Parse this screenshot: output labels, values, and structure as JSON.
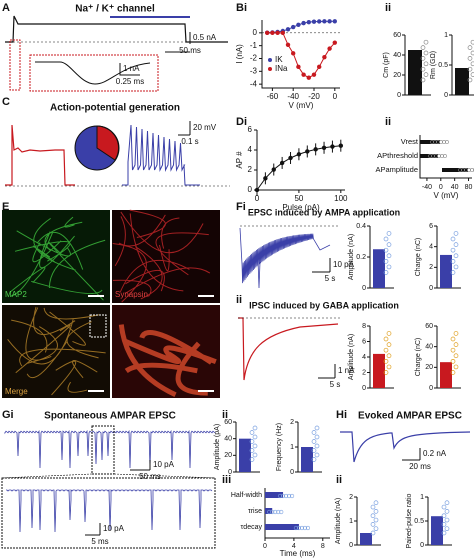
{
  "panels": {
    "A": {
      "label": "A",
      "title": "Na⁺ / K⁺ channel",
      "scale_current": "0.5 nA",
      "scale_time": "50 ms",
      "inset_current": "1 nA",
      "inset_time": "0.25 ms"
    },
    "B": {
      "label": "Bi",
      "ylabel": "I (nA)",
      "xlabel": "V (mV)",
      "xlim": [
        -70,
        5
      ],
      "ylim": [
        -4.3,
        1
      ],
      "xticks": [
        -60,
        -40,
        -20,
        0
      ],
      "yticks": [
        0,
        -1,
        -2,
        -3,
        -4
      ],
      "legend": [
        "IK",
        "INa"
      ],
      "sub_label": "ii"
    },
    "C": {
      "label": "C",
      "title": "Action-potential generation",
      "scale_voltage": "20 mV",
      "scale_time": "0.1 s"
    },
    "D": {
      "label": "Di",
      "ylabel": "AP #",
      "xlabel": "Pulse (pA)",
      "xlim": [
        0,
        105
      ],
      "ylim": [
        0,
        6
      ],
      "xticks": [
        0,
        50,
        100
      ],
      "yticks": [
        0,
        2,
        4,
        6
      ],
      "sub_label": "ii",
      "dii_labels": [
        "Vrest",
        "APthreshold",
        "APamplitude"
      ],
      "dii_xlabel": "V (mV)",
      "dii_xlim": [
        -60,
        90
      ],
      "dii_xticks": [
        -40,
        0,
        40,
        80
      ]
    },
    "E": {
      "label": "E",
      "images": [
        "MAP2",
        "Synapsin",
        "Merge"
      ]
    },
    "F": {
      "label": "Fi",
      "title_i": "EPSC induced by AMPA application",
      "scale_i_current": "10 pA",
      "scale_i_time": "5 s",
      "label_ii": "ii",
      "title_ii": "IPSC induced by GABA application",
      "scale_ii_current": "1 nA",
      "scale_ii_time": "5 s"
    },
    "G": {
      "label": "Gi",
      "title": "Spontaneous AMPAR EPSC",
      "scale_current": "10 pA",
      "scale_time": "50 ms",
      "zoom_current": "10 pA",
      "zoom_time": "5 ms",
      "label_ii": "ii",
      "label_iii": "iii",
      "iii_categories": [
        "Half-width",
        "τrise",
        "τdecay"
      ],
      "iii_values": [
        2.5,
        1.0,
        4.7
      ],
      "iii_xlabel": "Time (ms)",
      "iii_xlim": [
        0,
        9
      ],
      "iii_xticks": [
        0,
        4,
        8
      ]
    },
    "H": {
      "label": "Hi",
      "title": "Evoked AMPAR EPSC",
      "scale_current": "0.2 nA",
      "scale_time": "20 ms",
      "label_ii": "ii"
    }
  },
  "bar_charts": [
    {
      "ylabel": "Cm (pF)",
      "yticks": [
        0,
        20,
        40,
        60
      ],
      "value": 45,
      "color": "#111111"
    },
    {
      "ylabel": "Rm (GΩ)",
      "yticks": [
        0,
        0.5,
        1
      ],
      "value": 0.45,
      "color": "#111111"
    },
    {
      "ylabel": "Amplitude (nA)",
      "yticks": [
        0,
        0.2,
        0.4
      ],
      "value": 0.25,
      "color": "#3a3fa8"
    },
    {
      "ylabel": "Charge (nC)",
      "yticks": [
        0,
        2,
        4,
        6
      ],
      "value": 3.2,
      "color": "#3a3fa8"
    },
    {
      "ylabel": "Amplitude (nA)",
      "yticks": [
        0,
        2,
        4,
        6,
        8
      ],
      "value": 4.4,
      "color": "#c8191f"
    },
    {
      "ylabel": "Charge (nC)",
      "yticks": [
        0,
        20,
        40,
        60
      ],
      "value": 25,
      "color": "#c8191f"
    },
    {
      "ylabel": "Amplitude (pA)",
      "yticks": [
        0,
        20,
        40,
        60
      ],
      "value": 40,
      "color": "#3a3fa8"
    },
    {
      "ylabel": "Frequency (Hz)",
      "yticks": [
        0,
        1,
        2
      ],
      "value": 1.0,
      "color": "#3a3fa8"
    },
    {
      "ylabel": "Amplitude (nA)",
      "yticks": [
        0,
        1,
        2
      ],
      "value": 0.5,
      "color": "#3a3fa8"
    },
    {
      "ylabel": "Paired-pulse ratio",
      "yticks": [
        0,
        0.5,
        1
      ],
      "value": 0.6,
      "color": "#3a3fa8"
    }
  ]
}
